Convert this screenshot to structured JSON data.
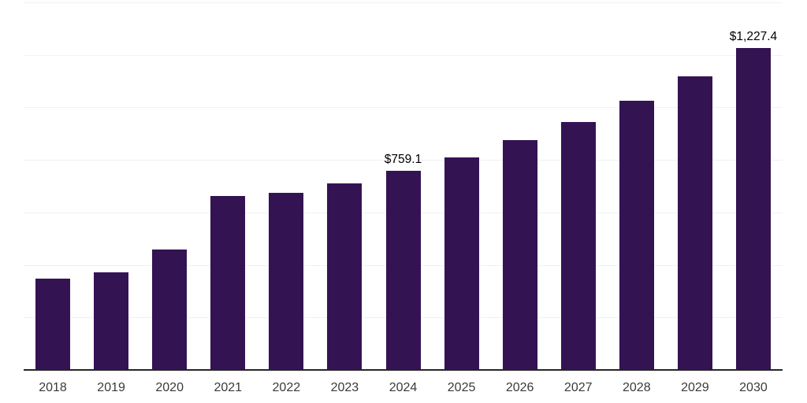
{
  "chart_data": {
    "type": "bar",
    "title": "",
    "xlabel": "",
    "ylabel": "",
    "categories": [
      "2018",
      "2019",
      "2020",
      "2021",
      "2022",
      "2023",
      "2024",
      "2025",
      "2026",
      "2027",
      "2028",
      "2029",
      "2030"
    ],
    "values": [
      347,
      373,
      459,
      664,
      675,
      711,
      759.1,
      810,
      876,
      944,
      1026,
      1117,
      1227.4
    ],
    "data_labels": {
      "2024": "$759.1",
      "2030": "$1,227.4"
    },
    "ylim": [
      0,
      1400
    ],
    "gridline_step": 200,
    "grid": "horizontal",
    "legend": "none",
    "colors": {
      "bar": "#341353",
      "axis_line": "#262626",
      "gridline": "#f1f1f1",
      "tick_label": "#3a3a3a",
      "data_label": "#000000",
      "background": "#ffffff"
    }
  }
}
